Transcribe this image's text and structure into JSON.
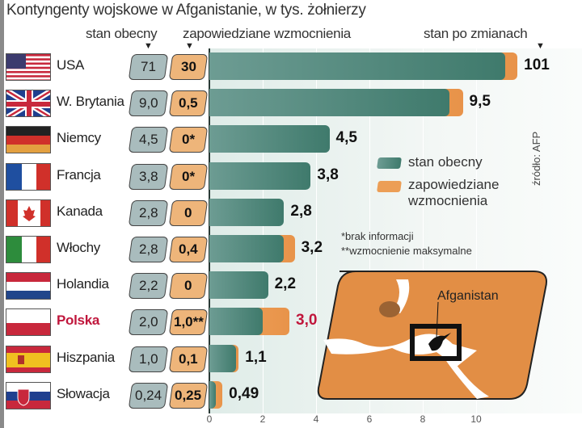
{
  "title": "Kontyngenty wojskowe w Afganistanie, w tys. żołnierzy",
  "headers": {
    "current": "stan obecny",
    "announced": "zapowiedziane wzmocnienia",
    "after": "stan po zmianach"
  },
  "legend": {
    "current": "stan obecny",
    "announced_1": "zapowiedziane",
    "announced_2": "wzmocnienia"
  },
  "notes": {
    "n1": "*brak informacji",
    "n2": "**wzmocnienie maksymalne"
  },
  "source": "źródło: AFP",
  "map_label": "Afganistan",
  "colors": {
    "current": "#3f7a6c",
    "announced": "#e8934a",
    "highlight": "#c0163c"
  },
  "chart_data": {
    "type": "bar",
    "stacked": true,
    "title": "Kontyngenty wojskowe w Afganistanie, w tys. żołnierzy",
    "xlim": [
      0,
      12
    ],
    "xticks": [
      "0",
      "2",
      "4",
      "6",
      "8",
      "10"
    ],
    "xtick_values": [
      0,
      2,
      4,
      6,
      8,
      10
    ],
    "categories": [
      "USA",
      "W. Brytania",
      "Niemcy",
      "Francja",
      "Kanada",
      "Włochy",
      "Holandia",
      "Polska",
      "Hiszpania",
      "Słowacja"
    ],
    "series": [
      {
        "name": "stan obecny",
        "values": [
          71,
          9.0,
          4.5,
          3.8,
          2.8,
          2.8,
          2.2,
          2.0,
          1.0,
          0.24
        ],
        "labels": [
          "71",
          "9,0",
          "4,5",
          "3,8",
          "2,8",
          "2,8",
          "2,2",
          "2,0",
          "1,0",
          "0,24"
        ]
      },
      {
        "name": "zapowiedziane wzmocnienia",
        "values": [
          30,
          0.5,
          0,
          0,
          0,
          0.4,
          0,
          1.0,
          0.1,
          0.25
        ],
        "labels": [
          "30",
          "0,5",
          "0*",
          "0*",
          "0",
          "0,4",
          "0",
          "1,0**",
          "0,1",
          "0,25"
        ]
      }
    ],
    "totals": [
      "101",
      "9,5",
      "4,5",
      "3,8",
      "2,8",
      "3,2",
      "2,2",
      "3,0",
      "1,1",
      "0,49"
    ],
    "highlight": "Polska",
    "axis_break": "USA bar truncated"
  }
}
